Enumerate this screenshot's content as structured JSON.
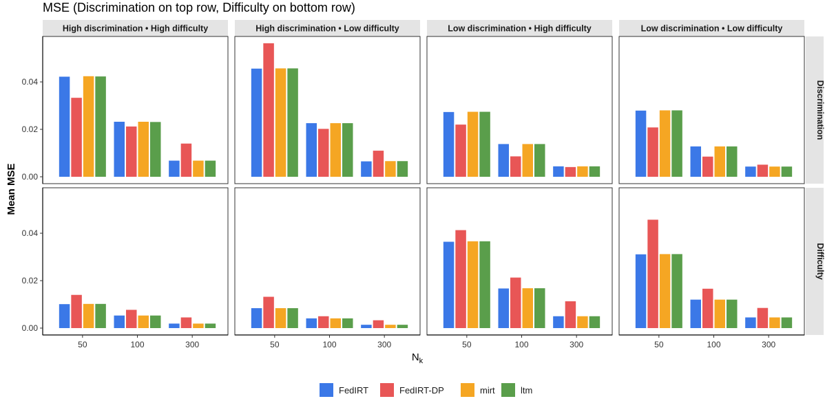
{
  "chart_data": {
    "type": "bar",
    "title": "MSE (Discrimination on top row, Difficulty on bottom row)",
    "xlabel_main": "N",
    "xlabel_sub": "k",
    "ylabel": "Mean MSE",
    "ylim": [
      0,
      0.058
    ],
    "yticks": [
      "0.00",
      "0.02",
      "0.04"
    ],
    "ytick_values": [
      0,
      0.02,
      0.04
    ],
    "categories": [
      "50",
      "100",
      "300"
    ],
    "columns": [
      "High discrimination • High difficulty",
      "High discrimination • Low difficulty",
      "Low discrimination • High difficulty",
      "Low discrimination • Low difficulty"
    ],
    "rows": [
      "Discrimination",
      "Difficulty"
    ],
    "series": [
      {
        "name": "FedIRT",
        "color": "#3b78e7"
      },
      {
        "name": "FedIRT-DP",
        "color": "#e85656"
      },
      {
        "name": "mirt",
        "color": "#f5a623"
      },
      {
        "name": "ltm",
        "color": "#5a9e4b"
      }
    ],
    "legend_position": "bottom",
    "panels": [
      {
        "row": 0,
        "col": 0,
        "values": [
          [
            0.0422,
            0.0333,
            0.0424,
            0.0423
          ],
          [
            0.0232,
            0.0212,
            0.0232,
            0.0231
          ],
          [
            0.0068,
            0.014,
            0.0068,
            0.0068
          ]
        ]
      },
      {
        "row": 0,
        "col": 1,
        "values": [
          [
            0.0456,
            0.0563,
            0.0457,
            0.0457
          ],
          [
            0.0226,
            0.0202,
            0.0226,
            0.0226
          ],
          [
            0.0065,
            0.011,
            0.0066,
            0.0066
          ]
        ]
      },
      {
        "row": 0,
        "col": 2,
        "values": [
          [
            0.0273,
            0.022,
            0.0274,
            0.0274
          ],
          [
            0.0138,
            0.0086,
            0.0138,
            0.0138
          ],
          [
            0.0044,
            0.0041,
            0.0044,
            0.0044
          ]
        ]
      },
      {
        "row": 0,
        "col": 3,
        "values": [
          [
            0.0279,
            0.0208,
            0.028,
            0.028
          ],
          [
            0.0128,
            0.0085,
            0.0128,
            0.0128
          ],
          [
            0.0043,
            0.0051,
            0.0043,
            0.0043
          ]
        ]
      },
      {
        "row": 1,
        "col": 0,
        "values": [
          [
            0.0101,
            0.014,
            0.0102,
            0.0102
          ],
          [
            0.0053,
            0.0077,
            0.0053,
            0.0053
          ],
          [
            0.0019,
            0.0045,
            0.0019,
            0.0019
          ]
        ]
      },
      {
        "row": 1,
        "col": 1,
        "values": [
          [
            0.0084,
            0.0132,
            0.0084,
            0.0084
          ],
          [
            0.0041,
            0.005,
            0.0041,
            0.0041
          ],
          [
            0.0014,
            0.0033,
            0.0014,
            0.0014
          ]
        ]
      },
      {
        "row": 1,
        "col": 2,
        "values": [
          [
            0.0364,
            0.0413,
            0.0366,
            0.0366
          ],
          [
            0.0167,
            0.0213,
            0.0168,
            0.0168
          ],
          [
            0.005,
            0.0113,
            0.005,
            0.005
          ]
        ]
      },
      {
        "row": 1,
        "col": 3,
        "values": [
          [
            0.0311,
            0.0457,
            0.0312,
            0.0312
          ],
          [
            0.012,
            0.0166,
            0.012,
            0.012
          ],
          [
            0.0045,
            0.0085,
            0.0045,
            0.0045
          ]
        ]
      }
    ]
  }
}
